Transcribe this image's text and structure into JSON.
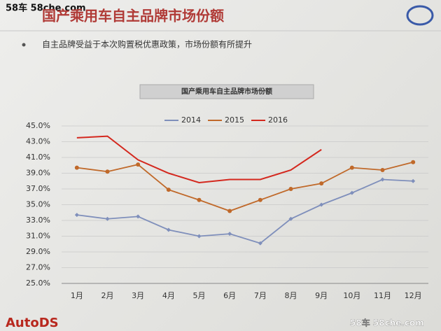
{
  "watermark": "58车 58che.com",
  "header": {
    "title": "国产乘用车自主品牌市场份额"
  },
  "bullet": "自主品牌受益于本次购置税优惠政策，市场份额有所提升",
  "footer": {
    "logo": "AutoDS",
    "watermark": "58车 58che.com"
  },
  "chart_data": {
    "type": "line",
    "title": "国产乘用车自主品牌市场份额",
    "categories": [
      "1月",
      "2月",
      "3月",
      "4月",
      "5月",
      "6月",
      "7月",
      "8月",
      "9月",
      "10月",
      "11月",
      "12月"
    ],
    "series": [
      {
        "name": "2014",
        "color": "#7f8fbb",
        "marker": "diamond",
        "values": [
          33.7,
          33.2,
          33.5,
          31.8,
          31.0,
          31.3,
          30.1,
          33.2,
          35.0,
          36.5,
          38.2,
          38.0
        ]
      },
      {
        "name": "2015",
        "color": "#c0692a",
        "marker": "circle",
        "values": [
          39.7,
          39.2,
          40.1,
          36.9,
          35.6,
          34.2,
          35.6,
          37.0,
          37.7,
          39.7,
          39.4,
          40.4
        ]
      },
      {
        "name": "2016",
        "color": "#d4281e",
        "marker": "none",
        "values": [
          43.5,
          43.7,
          40.7,
          39.0,
          37.8,
          38.2,
          38.2,
          39.4,
          42.0,
          null,
          null,
          null
        ]
      }
    ],
    "ylim": [
      25,
      45
    ],
    "yticks": [
      {
        "value": 25,
        "label": "25.0%"
      },
      {
        "value": 27,
        "label": "27.0%"
      },
      {
        "value": 29,
        "label": "29.0%"
      },
      {
        "value": 31,
        "label": "31.0%"
      },
      {
        "value": 33,
        "label": "33.0%"
      },
      {
        "value": 35,
        "label": "35.0%"
      },
      {
        "value": 37,
        "label": "37.0%"
      },
      {
        "value": 39,
        "label": "39.0%"
      },
      {
        "value": 41,
        "label": "41.0%"
      },
      {
        "value": 43,
        "label": "43.0%"
      },
      {
        "value": 45,
        "label": "45.0%"
      }
    ],
    "grid": true,
    "legend": "top"
  }
}
